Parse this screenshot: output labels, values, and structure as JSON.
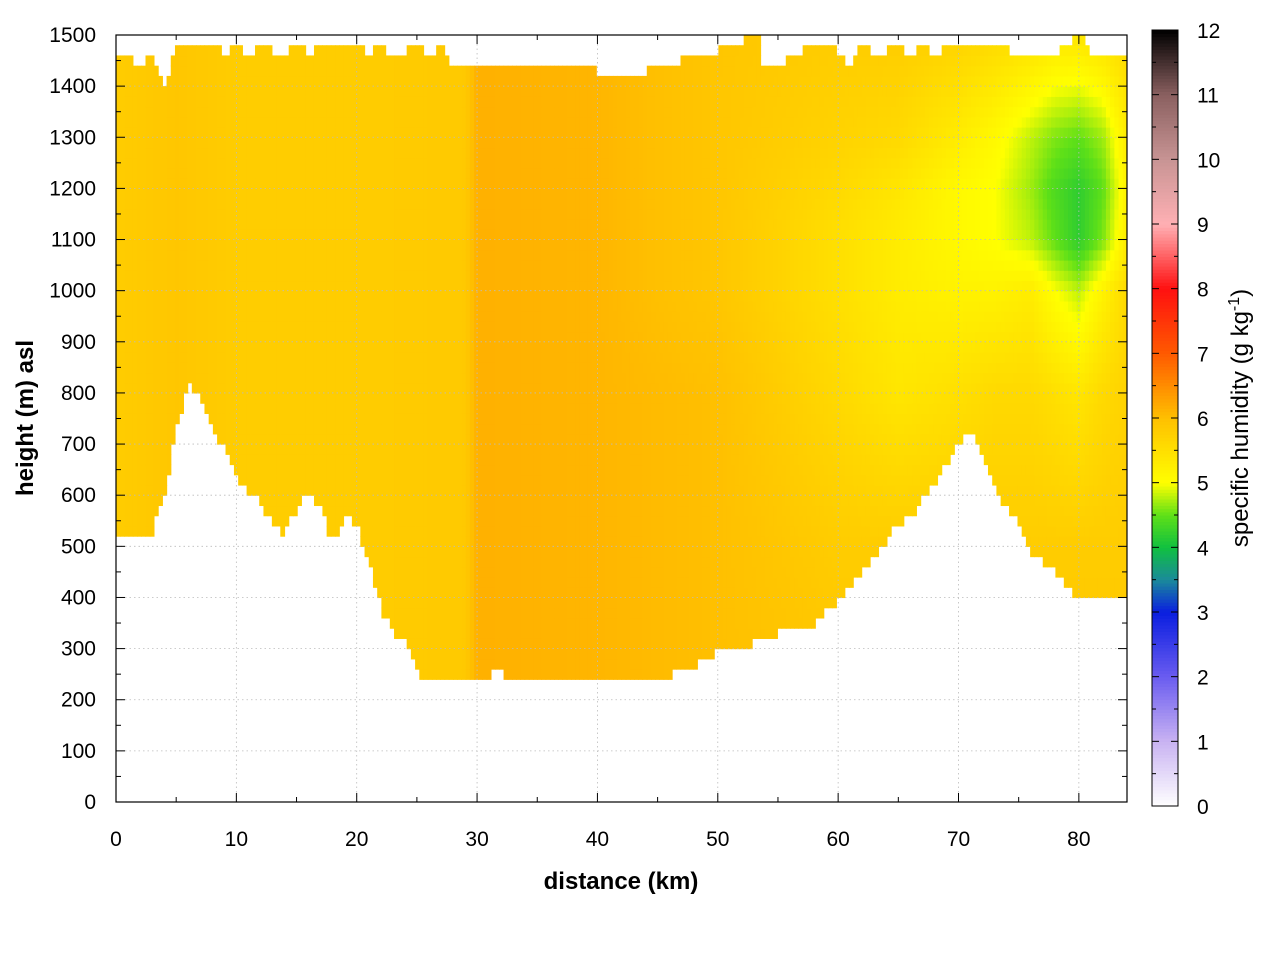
{
  "chart_data": {
    "type": "heatmap",
    "description_type": "vertical cross-section (distance vs height), masked below terrain",
    "xlabel": "distance (km)",
    "ylabel": "height (m) asl",
    "colorbar": {
      "label_main": "specific humidity (g kg",
      "label_sup": "-1",
      "label_end": ")",
      "range": [
        0,
        12
      ],
      "ticks": [
        "0",
        "1",
        "2",
        "3",
        "4",
        "5",
        "6",
        "7",
        "8",
        "9",
        "10",
        "11",
        "12"
      ],
      "colormap": [
        [
          0,
          "#ffffff"
        ],
        [
          1,
          "#c9b3f2"
        ],
        [
          2,
          "#6a5cf0"
        ],
        [
          3,
          "#0a1ee0"
        ],
        [
          3.5,
          "#1a8a9a"
        ],
        [
          4,
          "#10c040"
        ],
        [
          4.5,
          "#5ee018"
        ],
        [
          5,
          "#ffff00"
        ],
        [
          6,
          "#ffc000"
        ],
        [
          7,
          "#ff5a00"
        ],
        [
          8,
          "#ff1010"
        ],
        [
          9,
          "#ffb0b4"
        ],
        [
          10,
          "#c89494"
        ],
        [
          11,
          "#8a6060"
        ],
        [
          12,
          "#000000"
        ]
      ]
    },
    "xlim": [
      0,
      84
    ],
    "ylim": [
      0,
      1500
    ],
    "xticks": [
      "0",
      "10",
      "20",
      "30",
      "40",
      "50",
      "60",
      "70",
      "80"
    ],
    "yticks": [
      "0",
      "100",
      "200",
      "300",
      "400",
      "500",
      "600",
      "700",
      "800",
      "900",
      "1000",
      "1100",
      "1200",
      "1300",
      "1400",
      "1500"
    ],
    "grid": true,
    "terrain_height_m": {
      "x": [
        0,
        1,
        2,
        2.5,
        3,
        4,
        5,
        6,
        7,
        8,
        9,
        10,
        11,
        12,
        13,
        14,
        15,
        16,
        17,
        18,
        19,
        20,
        21,
        22,
        23,
        24,
        25,
        26,
        27,
        28,
        29,
        30,
        31,
        32,
        33,
        34,
        35,
        36,
        38,
        40,
        41,
        42,
        44,
        46,
        48,
        50,
        52,
        54,
        56,
        58,
        60,
        61,
        62,
        63,
        64,
        65,
        66,
        67,
        68,
        69,
        70,
        71,
        72,
        73,
        74,
        75,
        76,
        77,
        78,
        79,
        80,
        81,
        82,
        83,
        84
      ],
      "y": [
        515,
        530,
        520,
        515,
        530,
        600,
        730,
        815,
        800,
        720,
        690,
        635,
        610,
        585,
        540,
        525,
        575,
        608,
        570,
        510,
        560,
        545,
        470,
        380,
        330,
        310,
        255,
        235,
        240,
        248,
        250,
        248,
        250,
        252,
        245,
        240,
        238,
        240,
        240,
        240,
        238,
        240,
        242,
        248,
        268,
        295,
        300,
        320,
        338,
        350,
        395,
        420,
        450,
        480,
        510,
        545,
        555,
        590,
        620,
        665,
        700,
        722,
        680,
        610,
        580,
        540,
        490,
        470,
        450,
        420,
        400,
        395,
        400,
        405,
        405
      ]
    },
    "data_top_height_m": {
      "x": [
        0,
        1,
        2,
        3,
        4,
        5,
        6,
        7,
        8,
        9,
        10,
        11,
        12,
        13,
        14,
        15,
        16,
        17,
        18,
        19,
        20,
        21,
        22,
        23,
        24,
        25,
        26,
        27,
        28,
        30,
        32,
        34,
        36,
        38,
        40,
        42,
        44,
        46,
        48,
        50,
        52,
        53.5,
        53.6,
        56,
        58,
        60,
        61,
        62,
        63,
        64,
        65,
        66,
        67,
        68,
        69,
        70,
        71,
        72,
        73,
        74,
        75,
        76,
        77,
        78,
        79,
        80,
        81,
        82,
        83,
        84
      ],
      "y": [
        1450,
        1460,
        1440,
        1470,
        1390,
        1480,
        1490,
        1470,
        1490,
        1460,
        1480,
        1450,
        1480,
        1470,
        1450,
        1490,
        1460,
        1480,
        1470,
        1480,
        1490,
        1460,
        1480,
        1450,
        1470,
        1480,
        1460,
        1480,
        1430,
        1440,
        1445,
        1435,
        1430,
        1430,
        1430,
        1425,
        1430,
        1440,
        1460,
        1470,
        1490,
        1500,
        1430,
        1455,
        1480,
        1470,
        1440,
        1480,
        1460,
        1470,
        1480,
        1460,
        1490,
        1460,
        1480,
        1470,
        1490,
        1480,
        1470,
        1480,
        1450,
        1460,
        1470,
        1460,
        1480,
        1500,
        1470,
        1450,
        1450,
        1455
      ]
    },
    "specific_humidity_g_per_kg": {
      "distance_km": [
        0,
        5,
        10,
        20,
        29,
        30,
        40,
        50,
        60,
        65,
        70,
        73,
        76,
        78,
        80,
        82,
        84
      ],
      "height_m": [
        200,
        500,
        800,
        1000,
        1100,
        1200,
        1300,
        1500
      ],
      "values": [
        [
          5.8,
          5.8,
          5.8,
          5.8,
          5.8,
          5.8,
          5.8,
          5.8
        ],
        [
          5.9,
          5.9,
          5.9,
          5.9,
          5.9,
          5.9,
          5.9,
          5.9
        ],
        [
          5.8,
          5.8,
          5.8,
          5.8,
          5.8,
          5.8,
          5.8,
          5.8
        ],
        [
          5.8,
          5.8,
          5.8,
          5.8,
          5.8,
          5.8,
          5.8,
          5.8
        ],
        [
          5.85,
          5.85,
          5.85,
          5.85,
          5.85,
          5.85,
          5.85,
          5.85
        ],
        [
          6.15,
          6.15,
          6.15,
          6.15,
          6.15,
          6.15,
          6.15,
          6.15
        ],
        [
          6.1,
          6.1,
          6.1,
          6.1,
          6.1,
          6.1,
          6.1,
          6.1
        ],
        [
          6.0,
          6.0,
          6.0,
          5.9,
          5.9,
          5.9,
          5.9,
          5.9
        ],
        [
          5.9,
          5.8,
          5.6,
          5.5,
          5.5,
          5.6,
          5.7,
          5.8
        ],
        [
          5.9,
          5.8,
          5.4,
          5.3,
          5.3,
          5.4,
          5.6,
          5.8
        ],
        [
          5.9,
          5.8,
          5.5,
          5.2,
          5.1,
          5.1,
          5.3,
          5.7
        ],
        [
          5.9,
          5.8,
          5.6,
          5.2,
          5.0,
          5.0,
          5.1,
          5.6
        ],
        [
          5.9,
          5.8,
          5.6,
          5.3,
          4.8,
          4.7,
          4.8,
          5.5
        ],
        [
          5.9,
          5.8,
          5.5,
          5.0,
          4.5,
          4.4,
          4.6,
          5.4
        ],
        [
          5.9,
          5.8,
          5.4,
          4.8,
          4.2,
          4.2,
          4.5,
          5.4
        ],
        [
          5.9,
          5.8,
          5.6,
          5.2,
          4.6,
          4.5,
          4.7,
          5.5
        ],
        [
          5.9,
          5.8,
          5.7,
          5.6,
          5.3,
          5.2,
          5.3,
          5.6
        ]
      ]
    }
  }
}
